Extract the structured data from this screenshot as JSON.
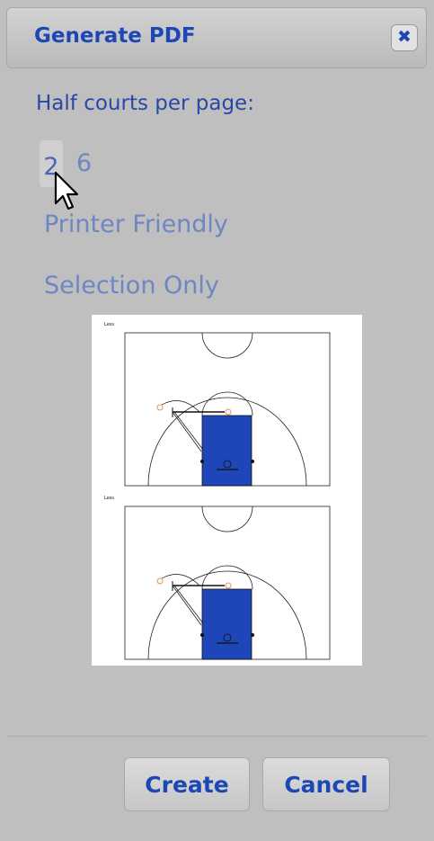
{
  "dialog": {
    "title": "Generate PDF",
    "close_glyph": "✖",
    "half_courts_label": "Half courts per page:",
    "options": [
      "2",
      "6"
    ],
    "selected_option": "2",
    "printer_friendly_label": "Printer Friendly",
    "selection_only_label": "Selection Only",
    "create_label": "Create",
    "cancel_label": "Cancel"
  },
  "preview": {
    "court_titles": [
      "Less",
      "Less"
    ]
  },
  "colors": {
    "accent": "#1d47b5",
    "muted_option": "#6f86c5",
    "court_paint": "#1f46b8"
  },
  "icons": [
    "close-icon",
    "mouse-cursor-icon"
  ]
}
